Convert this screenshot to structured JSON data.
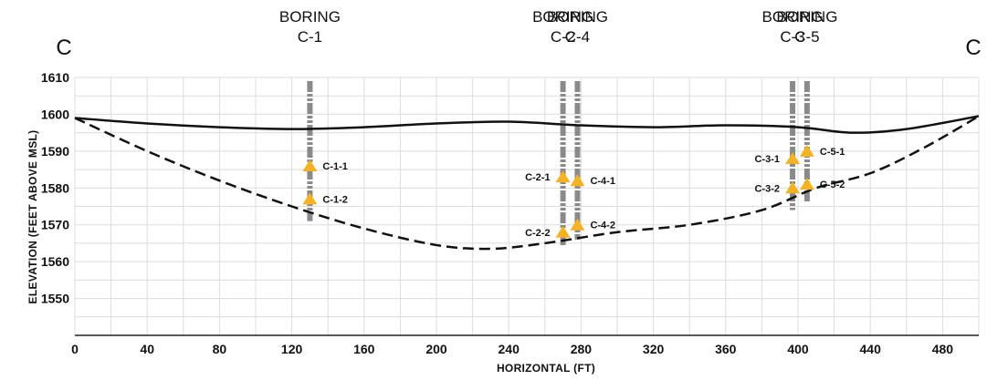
{
  "section": {
    "left_letter": "C",
    "right_letter": "C"
  },
  "axes": {
    "x_label": "HORIZONTAL (FT)",
    "y_label": "ELEVATION (FEET ABOVE MSL)",
    "x_ticks": [
      0,
      40,
      80,
      120,
      160,
      200,
      240,
      280,
      320,
      360,
      400,
      440,
      480
    ],
    "y_ticks": [
      1550,
      1560,
      1570,
      1580,
      1590,
      1600,
      1610
    ],
    "xlim": [
      0,
      500
    ],
    "ylim": [
      1540,
      1610
    ],
    "grid": true
  },
  "colors": {
    "grid": "#dcdcdc",
    "axis": "#222222",
    "surface": "#111111",
    "boring": "#8a8a8a",
    "sample_marker": "#f5b324"
  },
  "borings": [
    {
      "title": "BORING",
      "id": "C-1",
      "x": 130,
      "top": 1609,
      "bottom": 1571
    },
    {
      "title": "BORING",
      "id": "C-2",
      "x": 270,
      "top": 1609,
      "bottom": 1564
    },
    {
      "title": "BORING",
      "id": "C-4",
      "x": 278,
      "top": 1609,
      "bottom": 1566
    },
    {
      "title": "BORING",
      "id": "C-3",
      "x": 397,
      "top": 1609,
      "bottom": 1574
    },
    {
      "title": "BORING",
      "id": "C-5",
      "x": 405,
      "top": 1609,
      "bottom": 1576
    }
  ],
  "samples": [
    {
      "label": "C-1-1",
      "x": 130,
      "y": 1586,
      "side": "right"
    },
    {
      "label": "C-1-2",
      "x": 130,
      "y": 1577,
      "side": "right"
    },
    {
      "label": "C-2-1",
      "x": 270,
      "y": 1583,
      "side": "left"
    },
    {
      "label": "C-2-2",
      "x": 270,
      "y": 1568,
      "side": "left"
    },
    {
      "label": "C-4-1",
      "x": 278,
      "y": 1582,
      "side": "right"
    },
    {
      "label": "C-4-2",
      "x": 278,
      "y": 1570,
      "side": "right"
    },
    {
      "label": "C-3-1",
      "x": 397,
      "y": 1588,
      "side": "left"
    },
    {
      "label": "C-3-2",
      "x": 397,
      "y": 1580,
      "side": "left"
    },
    {
      "label": "C-5-1",
      "x": 405,
      "y": 1590,
      "side": "right"
    },
    {
      "label": "C-5-2",
      "x": 405,
      "y": 1581,
      "side": "right"
    }
  ],
  "ground_surface": [
    [
      0,
      1599
    ],
    [
      40,
      1597.5
    ],
    [
      80,
      1596.5
    ],
    [
      120,
      1596
    ],
    [
      160,
      1596.5
    ],
    [
      200,
      1597.5
    ],
    [
      240,
      1598
    ],
    [
      280,
      1597
    ],
    [
      320,
      1596.5
    ],
    [
      360,
      1597
    ],
    [
      400,
      1596.5
    ],
    [
      430,
      1595
    ],
    [
      460,
      1596
    ],
    [
      500,
      1599.5
    ]
  ],
  "bedrock_surface": [
    [
      0,
      1599
    ],
    [
      40,
      1590
    ],
    [
      80,
      1582
    ],
    [
      120,
      1575
    ],
    [
      160,
      1569
    ],
    [
      200,
      1564.5
    ],
    [
      230,
      1563.5
    ],
    [
      260,
      1565
    ],
    [
      300,
      1568
    ],
    [
      340,
      1570
    ],
    [
      380,
      1574
    ],
    [
      410,
      1580
    ],
    [
      440,
      1584
    ],
    [
      470,
      1591
    ],
    [
      500,
      1599.5
    ]
  ]
}
